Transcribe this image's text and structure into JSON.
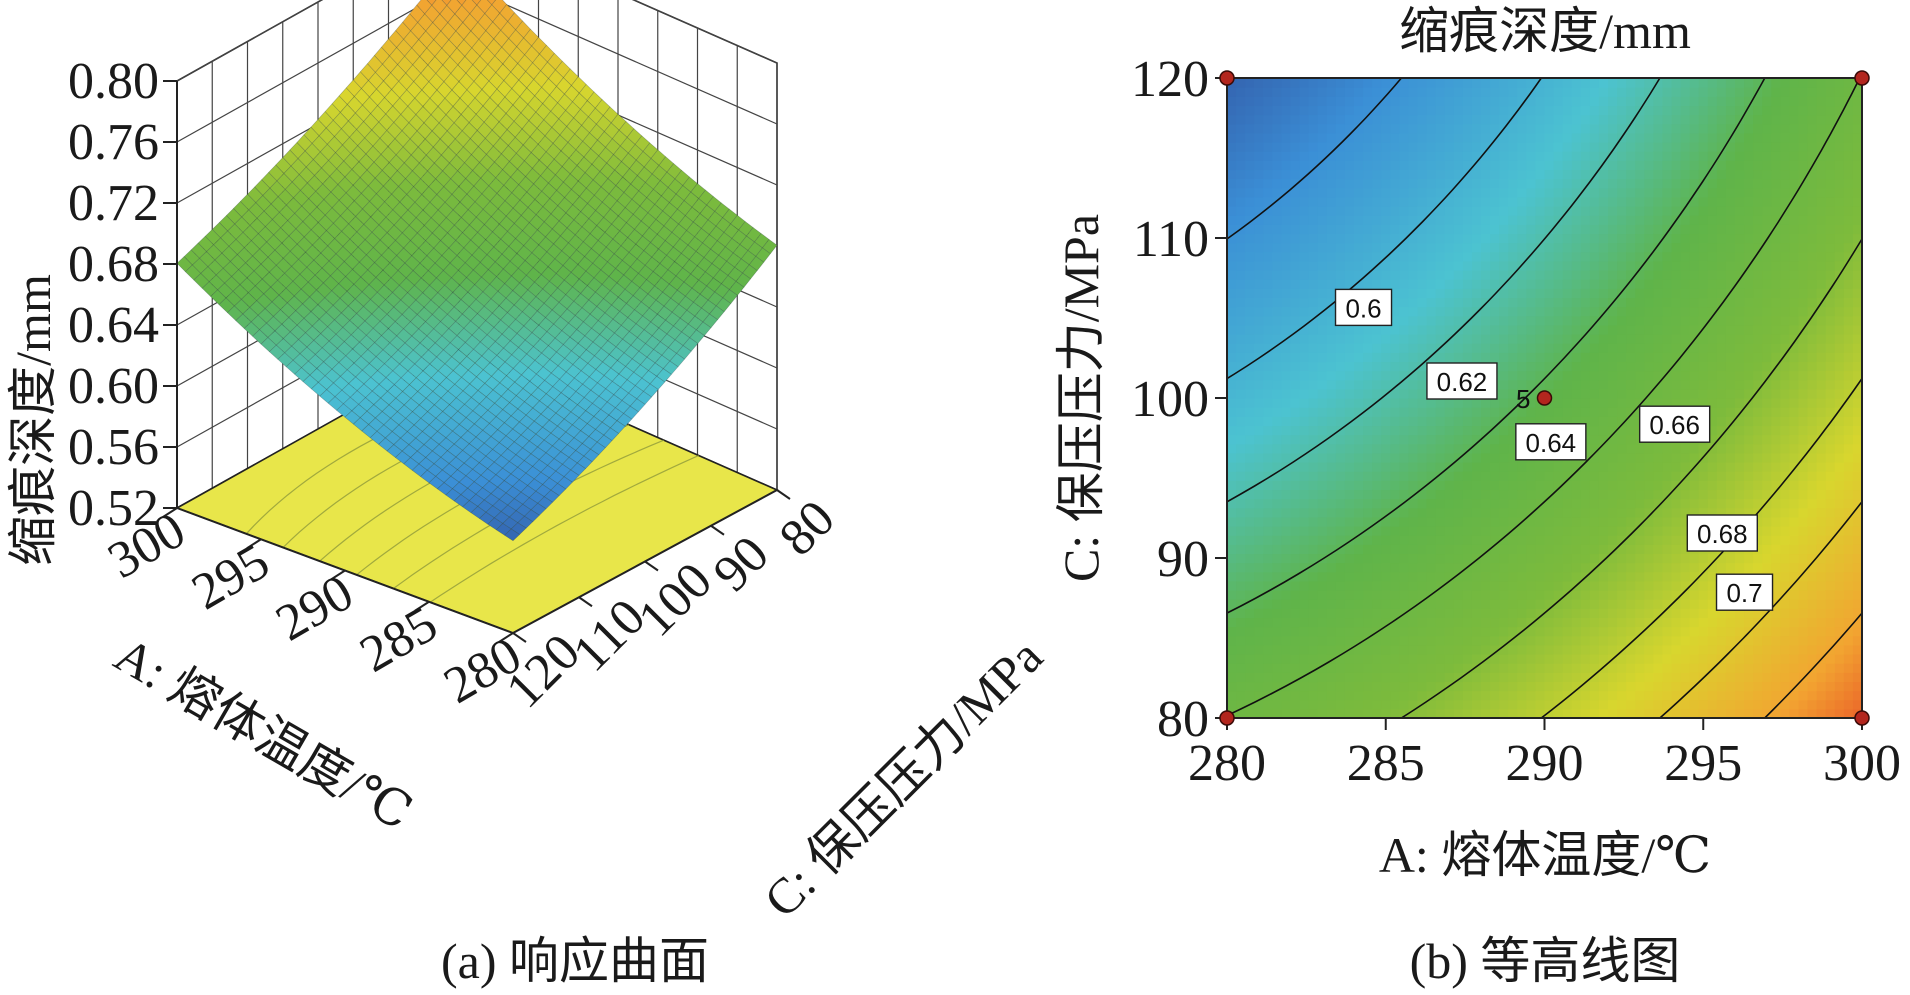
{
  "chart_data": [
    {
      "type": "surface",
      "caption": "(a) 响应曲面",
      "zlabel": "缩痕深度/mm",
      "xlabel": "A: 熔体温度/℃",
      "ylabel": "C: 保压压力/MPa",
      "z_ticks": [
        "0.52",
        "0.56",
        "0.60",
        "0.64",
        "0.68",
        "0.72",
        "0.76",
        "0.80"
      ],
      "x_ticks": [
        "300",
        "295",
        "290",
        "285",
        "280"
      ],
      "y_ticks": [
        "80",
        "90",
        "100",
        "110",
        "120"
      ],
      "x_range": [
        280,
        300
      ],
      "y_range": [
        80,
        120
      ],
      "z_range": [
        0.52,
        0.8
      ],
      "corner_values": [
        {
          "A": 280,
          "C": 80,
          "z": 0.68
        },
        {
          "A": 280,
          "C": 120,
          "z": 0.58
        },
        {
          "A": 300,
          "C": 80,
          "z": 0.78
        },
        {
          "A": 300,
          "C": 120,
          "z": 0.68
        }
      ],
      "floor_contours": true,
      "colormap": [
        "#2e3f8f",
        "#3b8fd6",
        "#4cc3d1",
        "#5fb44a",
        "#7dbb3c",
        "#d8d62e",
        "#f2a431",
        "#e53323"
      ]
    },
    {
      "type": "contour",
      "caption": "(b) 等高线图",
      "title": "缩痕深度/mm",
      "xlabel": "A: 熔体温度/℃",
      "ylabel": "C: 保压压力/MPa",
      "x_ticks": [
        "280",
        "285",
        "290",
        "295",
        "300"
      ],
      "y_ticks": [
        "80",
        "90",
        "100",
        "110",
        "120"
      ],
      "xlim": [
        280,
        300
      ],
      "ylim": [
        80,
        120
      ],
      "contour_levels": [
        "0.6",
        "0.62",
        "0.64",
        "0.66",
        "0.68",
        "0.7"
      ],
      "label_positions": [
        {
          "level": "0.6",
          "A": 284.3,
          "C": 105.6
        },
        {
          "level": "0.62",
          "A": 287.4,
          "C": 101.0
        },
        {
          "level": "0.64",
          "A": 290.2,
          "C": 97.2
        },
        {
          "level": "0.66",
          "A": 294.1,
          "C": 98.3
        },
        {
          "level": "0.68",
          "A": 295.6,
          "C": 91.5
        },
        {
          "level": "0.7",
          "A": 296.3,
          "C": 87.8
        }
      ],
      "design_points": [
        {
          "A": 280,
          "C": 80
        },
        {
          "A": 280,
          "C": 120
        },
        {
          "A": 300,
          "C": 80
        },
        {
          "A": 300,
          "C": 120
        },
        {
          "A": 290,
          "C": 100,
          "label": "5"
        }
      ],
      "colormap": [
        "#2e3f8f",
        "#3b8fd6",
        "#4cc3d1",
        "#5fb44a",
        "#7dbb3c",
        "#d8d62e",
        "#f2a431",
        "#e53323"
      ]
    }
  ]
}
